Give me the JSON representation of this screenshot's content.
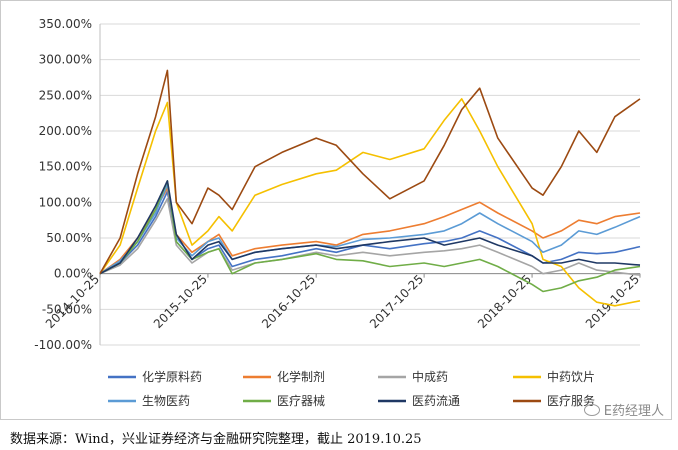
{
  "chart_data": {
    "type": "line",
    "title": "",
    "xlabel": "",
    "ylabel": "",
    "ylim": [
      -100,
      350
    ],
    "y_ticks": [
      350,
      300,
      250,
      200,
      150,
      100,
      50,
      0,
      -50,
      -100
    ],
    "y_tick_labels": [
      "350.00%",
      "300.00%",
      "250.00%",
      "200.00%",
      "150.00%",
      "100.00%",
      "50.00%",
      "0.00%",
      "-50.00%",
      "-100.00%"
    ],
    "x_range": [
      "2014-10-25",
      "2019-10-25"
    ],
    "x_ticks": [
      "2014-10-25",
      "2015-10-25",
      "2016-10-25",
      "2017-10-25",
      "2018-10-25",
      "2019-10-25"
    ],
    "grid": "horizontal",
    "legend_position": "bottom",
    "series": [
      {
        "name": "化学原料药",
        "color": "#4472c4",
        "x": [
          "2014-10-25",
          "2015-01-01",
          "2015-03-01",
          "2015-05-01",
          "2015-06-10",
          "2015-07-10",
          "2015-09-01",
          "2015-10-25",
          "2015-12-01",
          "2016-01-15",
          "2016-04-01",
          "2016-07-01",
          "2016-10-25",
          "2017-01-01",
          "2017-04-01",
          "2017-07-01",
          "2017-10-25",
          "2018-01-01",
          "2018-03-01",
          "2018-05-01",
          "2018-07-01",
          "2018-10-25",
          "2018-12-01",
          "2019-02-01",
          "2019-04-01",
          "2019-06-01",
          "2019-08-01",
          "2019-10-25"
        ],
        "values": [
          0,
          15,
          40,
          80,
          115,
          45,
          20,
          35,
          40,
          10,
          20,
          25,
          35,
          30,
          40,
          35,
          42,
          45,
          50,
          60,
          50,
          25,
          15,
          20,
          30,
          28,
          30,
          38
        ]
      },
      {
        "name": "化学制剂",
        "color": "#ed7d31",
        "x": [
          "2014-10-25",
          "2015-01-01",
          "2015-03-01",
          "2015-05-01",
          "2015-06-10",
          "2015-07-10",
          "2015-09-01",
          "2015-10-25",
          "2015-12-01",
          "2016-01-15",
          "2016-04-01",
          "2016-07-01",
          "2016-10-25",
          "2017-01-01",
          "2017-04-01",
          "2017-07-01",
          "2017-10-25",
          "2018-01-01",
          "2018-03-01",
          "2018-05-01",
          "2018-07-01",
          "2018-10-25",
          "2018-12-01",
          "2019-02-01",
          "2019-04-01",
          "2019-06-01",
          "2019-08-01",
          "2019-10-25"
        ],
        "values": [
          0,
          20,
          50,
          90,
          120,
          55,
          30,
          45,
          55,
          25,
          35,
          40,
          45,
          40,
          55,
          60,
          70,
          80,
          90,
          100,
          85,
          60,
          50,
          60,
          75,
          70,
          80,
          85
        ]
      },
      {
        "name": "中成药",
        "color": "#a5a5a5",
        "x": [
          "2014-10-25",
          "2015-01-01",
          "2015-03-01",
          "2015-05-01",
          "2015-06-10",
          "2015-07-10",
          "2015-09-01",
          "2015-10-25",
          "2015-12-01",
          "2016-01-15",
          "2016-04-01",
          "2016-07-01",
          "2016-10-25",
          "2017-01-01",
          "2017-04-01",
          "2017-07-01",
          "2017-10-25",
          "2018-01-01",
          "2018-03-01",
          "2018-05-01",
          "2018-07-01",
          "2018-10-25",
          "2018-12-01",
          "2019-02-01",
          "2019-04-01",
          "2019-06-01",
          "2019-08-01",
          "2019-10-25"
        ],
        "values": [
          0,
          12,
          35,
          75,
          105,
          40,
          15,
          30,
          35,
          5,
          15,
          20,
          30,
          25,
          30,
          25,
          30,
          32,
          35,
          40,
          30,
          10,
          0,
          5,
          15,
          5,
          2,
          -2
        ]
      },
      {
        "name": "中药饮片",
        "color": "#f5c000",
        "x": [
          "2014-10-25",
          "2015-01-01",
          "2015-03-01",
          "2015-05-01",
          "2015-06-10",
          "2015-07-10",
          "2015-09-01",
          "2015-10-25",
          "2015-12-01",
          "2016-01-15",
          "2016-04-01",
          "2016-07-01",
          "2016-10-25",
          "2017-01-01",
          "2017-04-01",
          "2017-07-01",
          "2017-10-25",
          "2018-01-01",
          "2018-03-01",
          "2018-05-01",
          "2018-07-01",
          "2018-10-25",
          "2018-12-01",
          "2019-02-01",
          "2019-04-01",
          "2019-06-01",
          "2019-08-01",
          "2019-10-25"
        ],
        "values": [
          0,
          40,
          120,
          200,
          240,
          100,
          40,
          60,
          80,
          60,
          110,
          125,
          140,
          145,
          170,
          160,
          175,
          215,
          245,
          200,
          150,
          70,
          20,
          10,
          -20,
          -40,
          -45,
          -38
        ]
      },
      {
        "name": "生物医药",
        "color": "#5b9bd5",
        "x": [
          "2014-10-25",
          "2015-01-01",
          "2015-03-01",
          "2015-05-01",
          "2015-06-10",
          "2015-07-10",
          "2015-09-01",
          "2015-10-25",
          "2015-12-01",
          "2016-01-15",
          "2016-04-01",
          "2016-07-01",
          "2016-10-25",
          "2017-01-01",
          "2017-04-01",
          "2017-07-01",
          "2017-10-25",
          "2018-01-01",
          "2018-03-01",
          "2018-05-01",
          "2018-07-01",
          "2018-10-25",
          "2018-12-01",
          "2019-02-01",
          "2019-04-01",
          "2019-06-01",
          "2019-08-01",
          "2019-10-25"
        ],
        "values": [
          0,
          18,
          45,
          85,
          125,
          50,
          25,
          45,
          50,
          20,
          30,
          35,
          40,
          38,
          48,
          50,
          55,
          60,
          70,
          85,
          70,
          45,
          30,
          40,
          60,
          55,
          65,
          80
        ]
      },
      {
        "name": "医疗器械",
        "color": "#70ad47",
        "x": [
          "2014-10-25",
          "2015-01-01",
          "2015-03-01",
          "2015-05-01",
          "2015-06-10",
          "2015-07-10",
          "2015-09-01",
          "2015-10-25",
          "2015-12-01",
          "2016-01-15",
          "2016-04-01",
          "2016-07-01",
          "2016-10-25",
          "2017-01-01",
          "2017-04-01",
          "2017-07-01",
          "2017-10-25",
          "2018-01-01",
          "2018-03-01",
          "2018-05-01",
          "2018-07-01",
          "2018-10-25",
          "2018-12-01",
          "2019-02-01",
          "2019-04-01",
          "2019-06-01",
          "2019-08-01",
          "2019-10-25"
        ],
        "values": [
          0,
          15,
          45,
          90,
          130,
          45,
          20,
          30,
          35,
          0,
          15,
          20,
          28,
          20,
          18,
          10,
          15,
          10,
          15,
          20,
          10,
          -15,
          -25,
          -20,
          -10,
          -5,
          5,
          10
        ]
      },
      {
        "name": "医药流通",
        "color": "#1f3864",
        "x": [
          "2014-10-25",
          "2015-01-01",
          "2015-03-01",
          "2015-05-01",
          "2015-06-10",
          "2015-07-10",
          "2015-09-01",
          "2015-10-25",
          "2015-12-01",
          "2016-01-15",
          "2016-04-01",
          "2016-07-01",
          "2016-10-25",
          "2017-01-01",
          "2017-04-01",
          "2017-07-01",
          "2017-10-25",
          "2018-01-01",
          "2018-03-01",
          "2018-05-01",
          "2018-07-01",
          "2018-10-25",
          "2018-12-01",
          "2019-02-01",
          "2019-04-01",
          "2019-06-01",
          "2019-08-01",
          "2019-10-25"
        ],
        "values": [
          0,
          15,
          50,
          95,
          130,
          55,
          20,
          40,
          45,
          20,
          30,
          35,
          40,
          35,
          40,
          45,
          50,
          40,
          45,
          50,
          40,
          25,
          15,
          15,
          20,
          15,
          15,
          12
        ]
      },
      {
        "name": "医疗服务",
        "color": "#9c4a12",
        "x": [
          "2014-10-25",
          "2015-01-01",
          "2015-03-01",
          "2015-05-01",
          "2015-06-10",
          "2015-07-10",
          "2015-09-01",
          "2015-10-25",
          "2015-12-01",
          "2016-01-15",
          "2016-04-01",
          "2016-07-01",
          "2016-10-25",
          "2017-01-01",
          "2017-04-01",
          "2017-07-01",
          "2017-10-25",
          "2018-01-01",
          "2018-03-01",
          "2018-05-01",
          "2018-07-01",
          "2018-10-25",
          "2018-12-01",
          "2019-02-01",
          "2019-04-01",
          "2019-06-01",
          "2019-08-01",
          "2019-10-25"
        ],
        "values": [
          0,
          50,
          140,
          220,
          285,
          100,
          70,
          120,
          110,
          90,
          150,
          170,
          190,
          180,
          140,
          105,
          130,
          180,
          230,
          260,
          190,
          120,
          110,
          150,
          200,
          170,
          220,
          245
        ]
      }
    ]
  },
  "source_note": "数据来源：Wind，兴业证券经济与金融研究院整理，截止 2019.10.25",
  "watermark": "E药经理人"
}
